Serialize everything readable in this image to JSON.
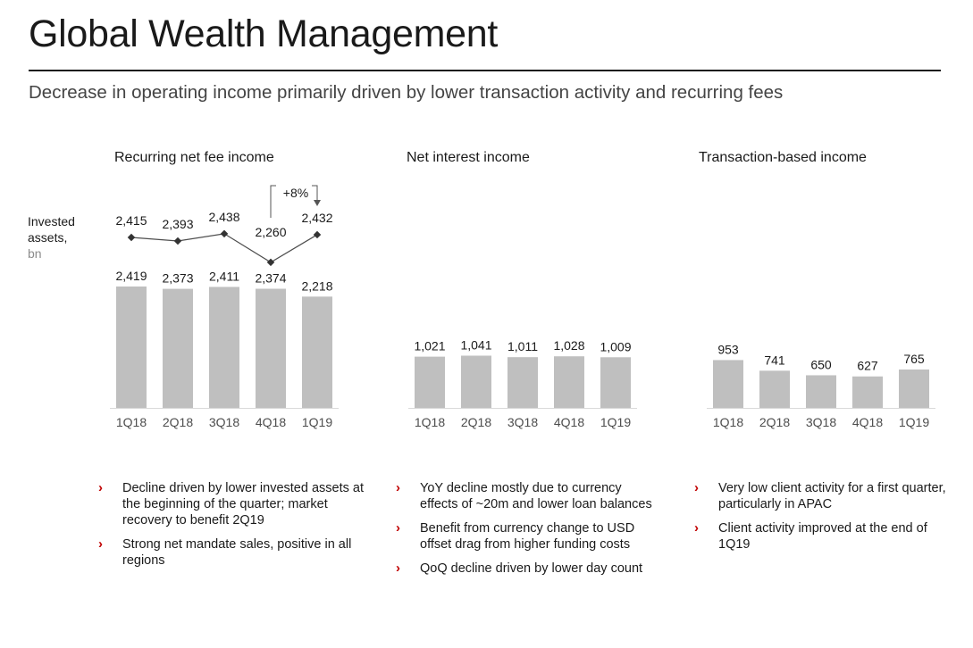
{
  "title": "Global Wealth Management",
  "subtitle": "Decrease in operating income primarily driven by lower transaction activity and recurring fees",
  "invested_assets_label": [
    "Invested",
    "assets,",
    "bn"
  ],
  "growth_annotation": "+8%",
  "colors": {
    "bar": "#bfbfbf",
    "line": "#4d4d4d",
    "rule": "#1a1a1a",
    "bullet": "#c00000"
  },
  "chart_data": [
    {
      "type": "bar",
      "title": "Recurring net fee income",
      "categories": [
        "1Q18",
        "2Q18",
        "3Q18",
        "4Q18",
        "1Q19"
      ],
      "values": [
        2419,
        2373,
        2411,
        2374,
        2218
      ],
      "value_labels": [
        "2,419",
        "2,373",
        "2,411",
        "2,374",
        "2,218"
      ],
      "overlay_line": {
        "name": "Invested assets, bn",
        "values": [
          2415,
          2393,
          2438,
          2260,
          2432
        ],
        "value_labels": [
          "2,415",
          "2,393",
          "2,438",
          "2,260",
          "2,432"
        ]
      }
    },
    {
      "type": "bar",
      "title": "Net interest income",
      "categories": [
        "1Q18",
        "2Q18",
        "3Q18",
        "4Q18",
        "1Q19"
      ],
      "values": [
        1021,
        1041,
        1011,
        1028,
        1009
      ],
      "value_labels": [
        "1,021",
        "1,041",
        "1,011",
        "1,028",
        "1,009"
      ]
    },
    {
      "type": "bar",
      "title": "Transaction-based income",
      "categories": [
        "1Q18",
        "2Q18",
        "3Q18",
        "4Q18",
        "1Q19"
      ],
      "values": [
        953,
        741,
        650,
        627,
        765
      ],
      "value_labels": [
        "953",
        "741",
        "650",
        "627",
        "765"
      ]
    }
  ],
  "bullets": [
    [
      "Decline driven by lower invested assets at the beginning of the quarter; market recovery to benefit 2Q19",
      "Strong net mandate sales, positive in all regions"
    ],
    [
      "YoY decline mostly due to currency effects of ~20m and lower loan balances",
      "Benefit from currency change to USD offset drag from higher funding costs",
      "QoQ decline driven by lower day count"
    ],
    [
      "Very low client activity for a first quarter, particularly in APAC",
      "Client activity improved at the end of 1Q19"
    ]
  ]
}
